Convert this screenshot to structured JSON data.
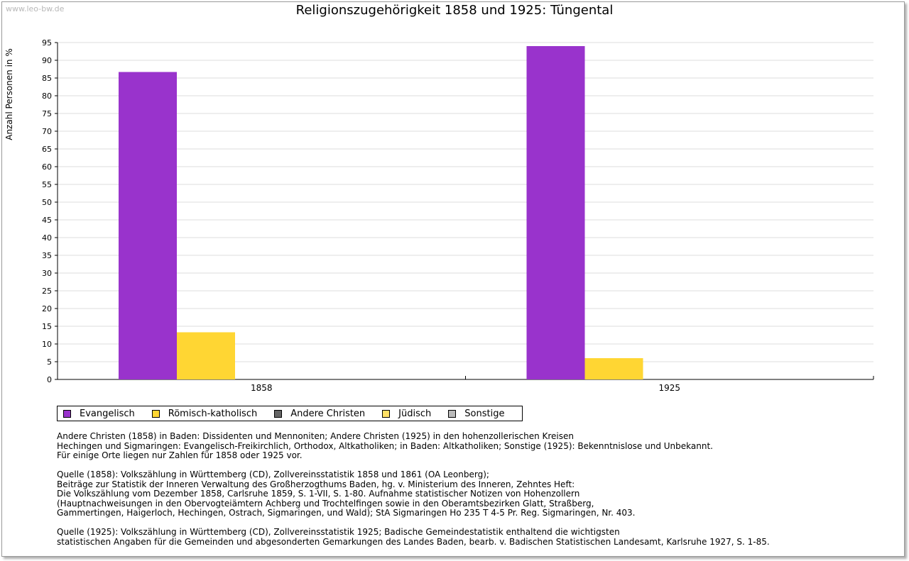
{
  "watermark": "www.leo-bw.de",
  "chart_data": {
    "type": "bar",
    "title": "Religionszugehörigkeit 1858 und 1925: Tüngental",
    "ylabel": "Anzahl Personen in %",
    "xlabel": "",
    "categories": [
      "1858",
      "1925"
    ],
    "ylim": [
      0,
      95
    ],
    "yticks": [
      0,
      5,
      10,
      15,
      20,
      25,
      30,
      35,
      40,
      45,
      50,
      55,
      60,
      65,
      70,
      75,
      80,
      85,
      90,
      95
    ],
    "grid": true,
    "legend_position": "bottom-left",
    "series": [
      {
        "name": "Evangelisch",
        "color": "#9933cc",
        "values": [
          86.7,
          94.0
        ]
      },
      {
        "name": "Römisch-katholisch",
        "color": "#ffd633",
        "values": [
          13.3,
          6.0
        ]
      },
      {
        "name": "Andere Christen",
        "color": "#666666",
        "values": [
          0,
          0
        ]
      },
      {
        "name": "Jüdisch",
        "color": "#ffe066",
        "values": [
          0,
          0
        ]
      },
      {
        "name": "Sonstige",
        "color": "#bbbbbb",
        "values": [
          0,
          0
        ]
      }
    ]
  },
  "notes": [
    "Andere Christen (1858) in Baden: Dissidenten und Mennoniten; Andere Christen (1925) in den hohenzollerischen Kreisen",
    "Hechingen und Sigmaringen: Evangelisch-Freikirchlich, Orthodox, Altkatholiken; in Baden: Altkatholiken; Sonstige (1925): Bekenntnislose und Unbekannt.",
    "Für einige Orte liegen nur Zahlen für 1858 oder 1925 vor.",
    "",
    "Quelle (1858): Volkszählung in Württemberg (CD), Zollvereinsstatistik 1858 und 1861 (OA Leonberg);",
    "Beiträge zur Statistik der Inneren Verwaltung des Großherzogthums Baden, hg. v. Ministerium des Inneren, Zehntes Heft:",
    "Die Volkszählung vom Dezember 1858, Carlsruhe 1859, S. 1-VII, S. 1-80. Aufnahme statistischer Notizen von Hohenzollern",
    "(Hauptnachweisungen in den Obervogteiämtern Achberg und Trochtelfingen sowie in den Oberamtsbezirken Glatt, Straßberg,",
    "Gammertingen, Haigerloch, Hechingen, Ostrach, Sigmaringen, und Wald); StA Sigmaringen Ho 235 T 4-5 Pr. Reg. Sigmaringen, Nr. 403.",
    "",
    "Quelle (1925): Volkszählung in Württemberg (CD), Zollvereinsstatistik 1925; Badische Gemeindestatistik enthaltend die wichtigsten",
    "statistischen Angaben für die Gemeinden und abgesonderten Gemarkungen des Landes Baden, bearb. v. Badischen Statistischen Landesamt, Karlsruhe 1927, S. 1-85."
  ]
}
